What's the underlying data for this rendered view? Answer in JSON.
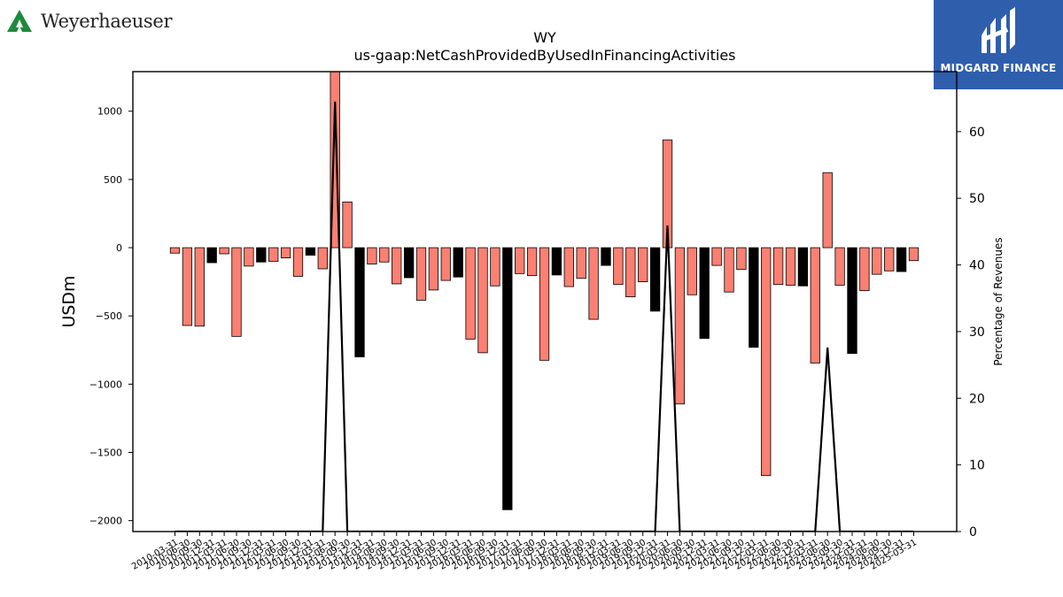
{
  "logos": {
    "left_name": "Weyerhaeuser",
    "right_name": "MIDGARD FINANCE"
  },
  "colors": {
    "negative_bar": "#fa8072",
    "highlight_bar": "#000000",
    "line": "#000000",
    "midgard_bg": "#2f5ead",
    "weyerhaeuser_green": "#1e8a3c"
  },
  "chart_data": {
    "type": "bar",
    "title": "WY",
    "subtitle": "us-gaap:NetCashProvidedByUsedInFinancingActivities",
    "ylabel": "USDm",
    "y2label": "Percentage of Revenues",
    "ylim": [
      -2080,
      1290
    ],
    "y2lim": [
      0,
      69
    ],
    "yticks": [
      1000,
      500,
      0,
      -500,
      -1000,
      -1500,
      -2000
    ],
    "y2ticks": [
      0,
      10,
      20,
      30,
      40,
      50,
      60
    ],
    "ytick_labels": [
      "1000",
      "500",
      "0",
      "−500",
      "−1000",
      "−1500",
      "−2000"
    ],
    "y2tick_labels": [
      "0",
      "10",
      "20",
      "30",
      "40",
      "50",
      "60"
    ],
    "categories": [
      "2010-03-31",
      "2010-06-30",
      "2010-09-30",
      "2010-12-31",
      "2011-03-31",
      "2011-06-30",
      "2011-09-30",
      "2011-12-31",
      "2012-03-31",
      "2012-06-30",
      "2012-09-30",
      "2012-12-31",
      "2013-03-31",
      "2013-06-30",
      "2013-09-30",
      "2013-12-31",
      "2014-03-31",
      "2014-06-30",
      "2014-09-30",
      "2014-12-31",
      "2015-03-31",
      "2015-06-30",
      "2015-09-30",
      "2015-12-31",
      "2016-03-31",
      "2016-06-30",
      "2016-09-30",
      "2016-12-31",
      "2017-03-31",
      "2017-06-30",
      "2017-09-30",
      "2017-12-31",
      "2018-03-31",
      "2018-06-30",
      "2018-09-30",
      "2018-12-31",
      "2019-03-31",
      "2019-06-30",
      "2019-09-30",
      "2019-12-31",
      "2020-03-31",
      "2020-06-30",
      "2020-09-30",
      "2020-12-31",
      "2021-03-31",
      "2021-06-30",
      "2021-09-30",
      "2021-12-31",
      "2022-03-31",
      "2022-06-30",
      "2022-09-30",
      "2022-12-31",
      "2023-03-31",
      "2023-06-30",
      "2023-09-30",
      "2023-12-31",
      "2024-03-31",
      "2024-06-30",
      "2024-09-30",
      "2024-12-31",
      "2025-03-31"
    ],
    "xtick_labels": [
      "2010-03-31",
      "2010-06-30",
      "2010-09-30",
      "2010-12-31",
      "2011-03-31",
      "2011-06-30",
      "2011-09-30",
      "2011-12-31",
      "2012-03-31",
      "2012-06-30",
      "2012-09-30",
      "2012-12-31",
      "2013-03-31",
      "2013-06-30",
      "2013-09-30",
      "2013-12-31",
      "2014-03-31",
      "2014-06-30",
      "2014-09-30",
      "2014-12-31",
      "2015-03-31",
      "2015-06-30",
      "2015-09-30",
      "2015-12-31",
      "2016-03-31",
      "2016-06-30",
      "2016-09-30",
      "2016-12-31",
      "2017-03-31",
      "2017-06-30",
      "2017-09-30",
      "2017-12-31",
      "2018-03-31",
      "2018-06-30",
      "2018-09-30",
      "2018-12-31",
      "2019-03-31",
      "2019-06-30",
      "2019-09-30",
      "2019-12-31",
      "2020-03-31",
      "2020-06-30",
      "2020-09-30",
      "2020-12-31",
      "2021-03-31",
      "2021-06-30",
      "2021-09-30",
      "2021-12-31",
      "2022-03-31",
      "2022-06-30",
      "2022-09-30",
      "2022-12-31",
      "2023-03-31",
      "2023-06-30",
      "2023-09-30",
      "2023-12-31",
      "2024-03-31",
      "2024-06-30",
      "2024-09-30",
      "2024-12-31",
      "2025-03-31"
    ],
    "values": [
      -40,
      -570,
      -575,
      -110,
      -45,
      -650,
      -135,
      -105,
      -100,
      -75,
      -210,
      -55,
      -155,
      1290,
      335,
      -800,
      -120,
      -105,
      -265,
      -220,
      -385,
      -310,
      -240,
      -215,
      -670,
      -770,
      -280,
      -1920,
      -190,
      -205,
      -825,
      -200,
      -285,
      -225,
      -525,
      -130,
      -270,
      -360,
      -250,
      -465,
      790,
      -1145,
      -345,
      -665,
      -130,
      -325,
      -160,
      -730,
      -1670,
      -270,
      -275,
      -280,
      -845,
      550,
      -275,
      -775,
      -315,
      -195,
      -170,
      -175,
      -95
    ],
    "highlight": [
      false,
      false,
      false,
      true,
      false,
      false,
      false,
      true,
      false,
      false,
      false,
      true,
      false,
      false,
      false,
      true,
      false,
      false,
      false,
      true,
      false,
      false,
      false,
      true,
      false,
      false,
      false,
      true,
      false,
      false,
      false,
      true,
      false,
      false,
      false,
      true,
      false,
      false,
      false,
      true,
      false,
      false,
      false,
      true,
      false,
      false,
      false,
      true,
      false,
      false,
      false,
      true,
      false,
      false,
      false,
      true,
      false,
      false,
      false,
      true,
      false
    ],
    "series": [
      {
        "name": "",
        "axis": "right",
        "type": "line",
        "values": [
          0,
          0,
          0,
          0,
          0,
          0,
          0,
          0,
          0,
          0,
          0,
          0,
          0,
          64.5,
          0,
          0,
          0,
          0,
          0,
          0,
          0,
          0,
          0,
          0,
          0,
          0,
          0,
          0,
          0,
          0,
          0,
          0,
          0,
          0,
          0,
          0,
          0,
          0,
          0,
          0,
          45.9,
          0,
          0,
          0,
          0,
          0,
          0,
          0,
          0,
          0,
          0,
          0,
          0,
          27.6,
          0,
          0,
          0,
          0,
          0,
          0,
          0
        ]
      }
    ],
    "grid": false,
    "legend": "none"
  }
}
